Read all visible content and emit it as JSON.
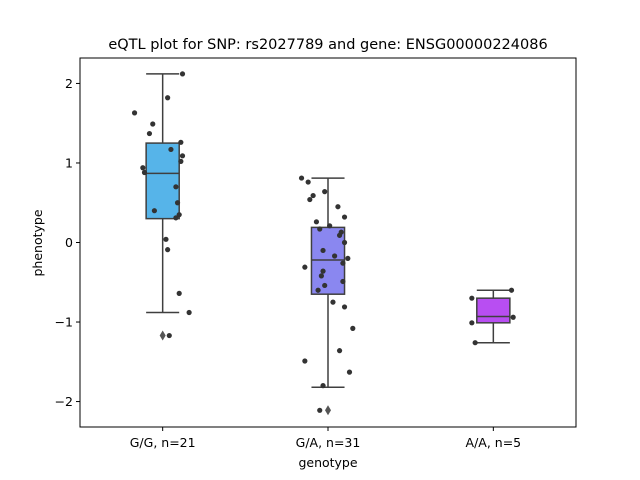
{
  "chart_data": {
    "type": "box",
    "title": "eQTL plot for SNP: rs2027789 and gene: ENSG00000224086",
    "xlabel": "genotype",
    "ylabel": "phenotype",
    "ylim": [
      -2.32,
      2.32
    ],
    "yticks": [
      -2,
      -1,
      0,
      1,
      2
    ],
    "grid": false,
    "categories": [
      "G/G, n=21",
      "G/A, n=31",
      "A/A, n=5"
    ],
    "colors": [
      "#56b4e9",
      "#8a87f0",
      "#b84ef2"
    ],
    "point_color": "#333333",
    "outlier_color": "#555555",
    "boxes": [
      {
        "whisker_low": -0.88,
        "q1": 0.3,
        "median": 0.87,
        "q3": 1.25,
        "whisker_high": 2.12,
        "outliers": [
          -1.17
        ]
      },
      {
        "whisker_low": -1.82,
        "q1": -0.65,
        "median": -0.22,
        "q3": 0.19,
        "whisker_high": 0.81,
        "outliers": [
          -2.11
        ]
      },
      {
        "whisker_low": -1.26,
        "q1": -1.01,
        "median": -0.93,
        "q3": -0.7,
        "whisker_high": -0.6,
        "outliers": []
      }
    ],
    "points": [
      [
        {
          "dx": 0.12,
          "y": 2.12
        },
        {
          "dx": 0.03,
          "y": 1.82
        },
        {
          "dx": -0.17,
          "y": 1.63
        },
        {
          "dx": -0.06,
          "y": 1.49
        },
        {
          "dx": -0.08,
          "y": 1.37
        },
        {
          "dx": 0.11,
          "y": 1.26
        },
        {
          "dx": 0.05,
          "y": 1.17
        },
        {
          "dx": 0.12,
          "y": 1.09
        },
        {
          "dx": 0.11,
          "y": 1.02
        },
        {
          "dx": -0.12,
          "y": 0.94
        },
        {
          "dx": -0.11,
          "y": 0.88
        },
        {
          "dx": 0.08,
          "y": 0.7
        },
        {
          "dx": 0.09,
          "y": 0.5
        },
        {
          "dx": -0.05,
          "y": 0.4
        },
        {
          "dx": 0.1,
          "y": 0.35
        },
        {
          "dx": 0.08,
          "y": 0.31
        },
        {
          "dx": 0.02,
          "y": 0.04
        },
        {
          "dx": 0.03,
          "y": -0.09
        },
        {
          "dx": 0.1,
          "y": -0.64
        },
        {
          "dx": 0.16,
          "y": -0.88
        },
        {
          "dx": 0.04,
          "y": -1.17
        }
      ],
      [
        {
          "dx": -0.16,
          "y": 0.81
        },
        {
          "dx": -0.12,
          "y": 0.76
        },
        {
          "dx": -0.02,
          "y": 0.64
        },
        {
          "dx": -0.09,
          "y": 0.59
        },
        {
          "dx": -0.11,
          "y": 0.54
        },
        {
          "dx": 0.06,
          "y": 0.45
        },
        {
          "dx": -0.07,
          "y": 0.26
        },
        {
          "dx": 0.01,
          "y": 0.21
        },
        {
          "dx": -0.05,
          "y": 0.17
        },
        {
          "dx": 0.08,
          "y": 0.13
        },
        {
          "dx": 0.07,
          "y": 0.09
        },
        {
          "dx": 0.1,
          "y": 0.0
        },
        {
          "dx": -0.03,
          "y": -0.1
        },
        {
          "dx": 0.04,
          "y": -0.17
        },
        {
          "dx": 0.12,
          "y": -0.2
        },
        {
          "dx": 0.09,
          "y": -0.26
        },
        {
          "dx": -0.14,
          "y": -0.31
        },
        {
          "dx": -0.03,
          "y": -0.36
        },
        {
          "dx": -0.04,
          "y": -0.42
        },
        {
          "dx": 0.09,
          "y": -0.49
        },
        {
          "dx": -0.02,
          "y": -0.54
        },
        {
          "dx": 0.03,
          "y": -0.75
        },
        {
          "dx": 0.1,
          "y": -0.81
        },
        {
          "dx": 0.15,
          "y": -1.08
        },
        {
          "dx": 0.07,
          "y": -1.36
        },
        {
          "dx": -0.14,
          "y": -1.49
        },
        {
          "dx": 0.13,
          "y": -1.63
        },
        {
          "dx": -0.03,
          "y": -1.8
        },
        {
          "dx": -0.05,
          "y": -2.11
        },
        {
          "dx": 0.1,
          "y": 0.32
        },
        {
          "dx": -0.06,
          "y": -0.6
        }
      ],
      [
        {
          "dx": 0.11,
          "y": -0.6
        },
        {
          "dx": -0.13,
          "y": -0.7
        },
        {
          "dx": 0.12,
          "y": -0.94
        },
        {
          "dx": -0.13,
          "y": -1.01
        },
        {
          "dx": -0.11,
          "y": -1.26
        }
      ]
    ]
  }
}
